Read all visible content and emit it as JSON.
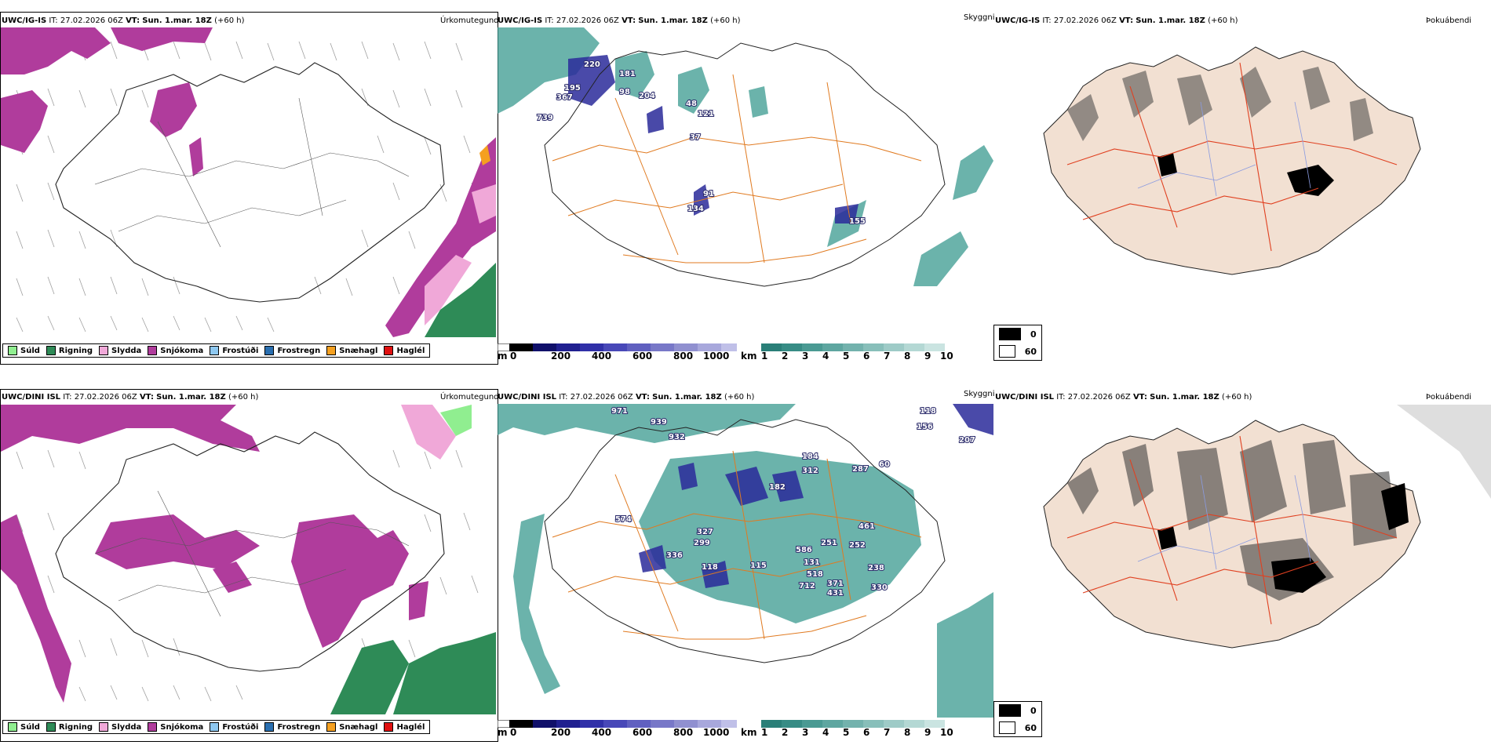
{
  "rows": [
    {
      "model": "UWC/IG-IS",
      "it_label": "IT:",
      "it_value": "27.02.2026 06Z",
      "vt_label": "VT:",
      "vt_value": "Sun. 1.mar. 18Z",
      "lead": "(+60 h)"
    },
    {
      "model": "UWC/DINI ISL",
      "it_label": "IT:",
      "it_value": "27.02.2026 06Z",
      "vt_label": "VT:",
      "vt_value": "Sun. 1.mar. 18Z",
      "lead": "(+60 h)"
    }
  ],
  "panel_titles": {
    "precip": "Úrkomutegund",
    "visibility": "Skyggni",
    "fog": "Þokuábendi"
  },
  "precip_legend": [
    {
      "label": "Súld",
      "color": "#90ee90"
    },
    {
      "label": "Rigning",
      "color": "#2e8b57"
    },
    {
      "label": "Slydda",
      "color": "#f0a8d8"
    },
    {
      "label": "Snjókoma",
      "color": "#b03c9c"
    },
    {
      "label": "Frostúði",
      "color": "#8ec8f0"
    },
    {
      "label": "Frostregn",
      "color": "#2a6fb0"
    },
    {
      "label": "Snæhagl",
      "color": "#f5a020"
    },
    {
      "label": "Haglél",
      "color": "#e01010"
    }
  ],
  "visibility_bar_m": {
    "unit": "m",
    "ticks": [
      "0",
      "200",
      "400",
      "600",
      "800",
      "1000"
    ]
  },
  "visibility_bar_km": {
    "unit": "km",
    "ticks": [
      "1",
      "2",
      "3",
      "4",
      "5",
      "6",
      "7",
      "8",
      "9",
      "10"
    ]
  },
  "fog_legend": [
    {
      "label": "0",
      "color": "#000000"
    },
    {
      "label": "60",
      "color": "#ffffff"
    }
  ],
  "vis_labels_top": [
    "220",
    "181",
    "195",
    "98",
    "204",
    "367",
    "739",
    "121",
    "48",
    "37",
    "91",
    "134",
    "155"
  ],
  "vis_labels_bottom": [
    "971",
    "939",
    "932",
    "118",
    "156",
    "207",
    "184",
    "312",
    "287",
    "60",
    "574",
    "327",
    "299",
    "336",
    "118",
    "115",
    "182",
    "586",
    "251",
    "252",
    "131",
    "518",
    "371",
    "431",
    "712",
    "238",
    "330",
    "461"
  ]
}
